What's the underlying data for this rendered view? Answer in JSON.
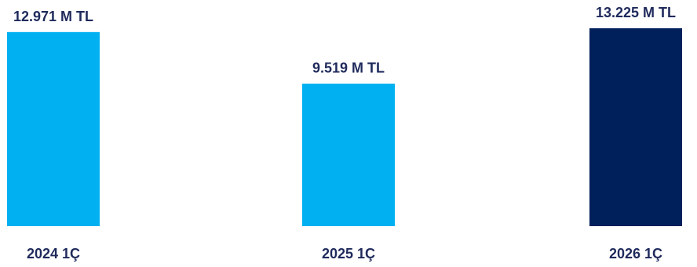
{
  "chart_data": {
    "type": "bar",
    "categories": [
      "2024 1Ç",
      "2025 1Ç",
      "2026 1Ç"
    ],
    "values": [
      12971,
      9519,
      13225
    ],
    "value_labels": [
      "12.971  M TL",
      "9.519  M TL",
      "13.225  M TL"
    ],
    "colors": [
      "#00b0f0",
      "#00b0f0",
      "#00205b"
    ],
    "ylim": [
      0,
      13225
    ],
    "grid": false,
    "legend": false
  }
}
